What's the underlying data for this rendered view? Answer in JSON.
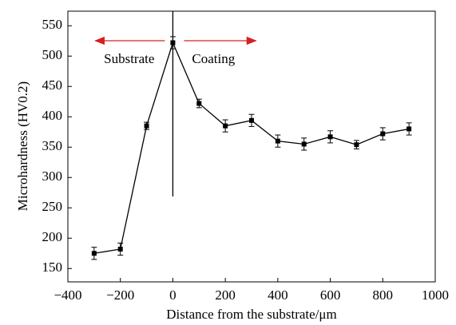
{
  "chart_data": {
    "type": "line",
    "x_label": "Distance from the substrate/μm",
    "y_label": "Microhardness (HV0.2)",
    "annotations": [
      "Substrate",
      "Coating"
    ],
    "x": [
      -300,
      -200,
      -100,
      0,
      100,
      200,
      300,
      400,
      500,
      600,
      700,
      800,
      900
    ],
    "series": [
      {
        "color": "#000000",
        "values": [
          175,
          182,
          385,
          522,
          422,
          385,
          394,
          360,
          355,
          367,
          354,
          372,
          380
        ],
        "errors": [
          10,
          10,
          6,
          10,
          7,
          10,
          10,
          10,
          10,
          10,
          7,
          10,
          10
        ]
      }
    ],
    "xlim": [
      -400,
      1000
    ],
    "xticks": [
      {
        "value": -400,
        "label": "−400"
      },
      {
        "value": -200,
        "label": "−200"
      },
      0,
      200,
      400,
      600,
      800,
      1000
    ],
    "ylim": [
      128,
      574
    ],
    "yticks": [
      150,
      200,
      250,
      300,
      350,
      400,
      450,
      500,
      550
    ],
    "annotation_color": "#d62020"
  }
}
